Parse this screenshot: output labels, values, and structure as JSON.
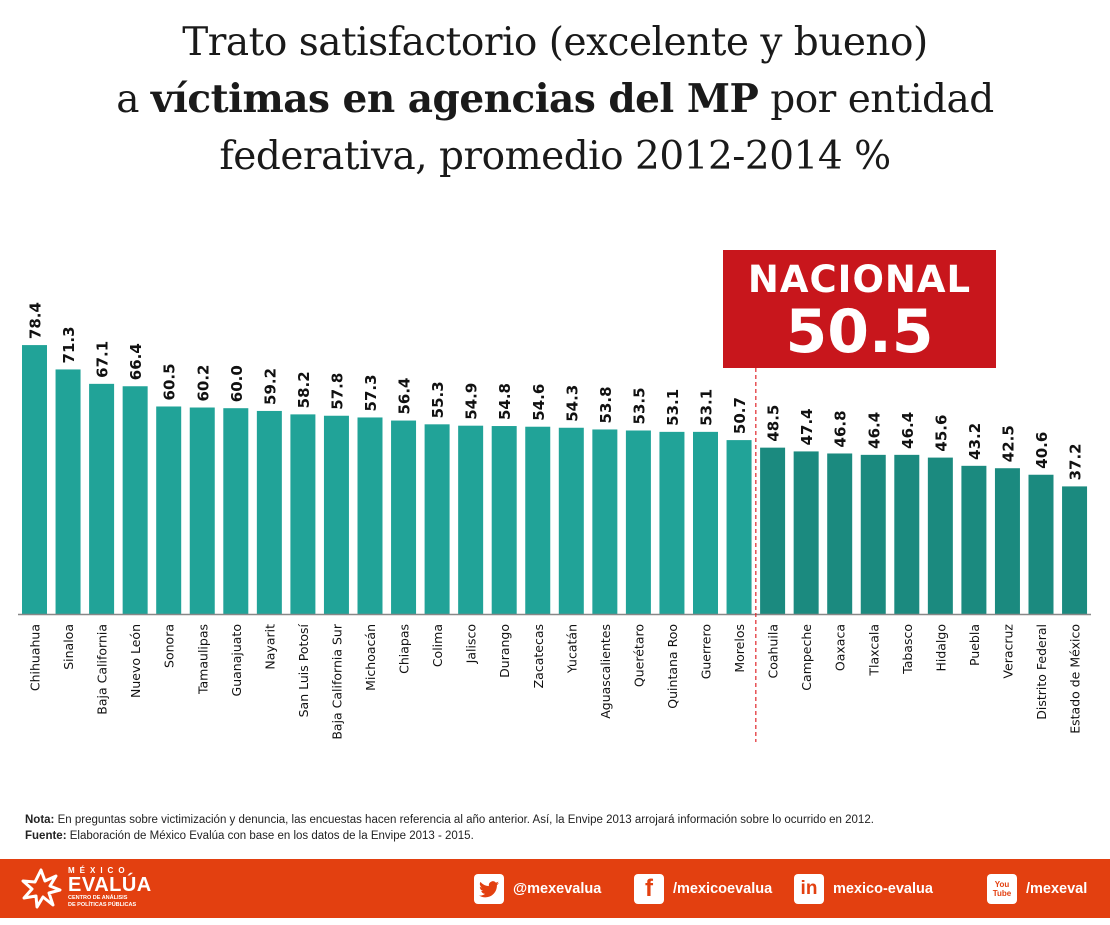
{
  "title": {
    "line1": "Trato satisfactorio (excelente y bueno)",
    "line2_pre": "a ",
    "line2_bold": "víctimas en agencias del MP",
    "line2_post": " por entidad",
    "line3": "federativa, promedio 2012-2014 %"
  },
  "nacional": {
    "label": "NACIONAL",
    "value": "50.5"
  },
  "colors": {
    "above": "#21A398",
    "below": "#1B8A7F",
    "nacional": "#C8161C",
    "footer": "#E34010"
  },
  "chart_data": {
    "type": "bar",
    "title": "Trato satisfactorio (excelente y bueno) a víctimas en agencias del MP por entidad federativa, promedio 2012-2014 %",
    "xlabel": "",
    "ylabel": "",
    "ylim": [
      0,
      80
    ],
    "grid": false,
    "reference_line": {
      "label": "NACIONAL",
      "value": 50.5
    },
    "categories": [
      "Chihuahua",
      "Sinaloa",
      "Baja California",
      "Nuevo León",
      "Sonora",
      "Tamaulipas",
      "Guanajuato",
      "Nayarit",
      "San Luis Potosí",
      "Baja California Sur",
      "Michoacán",
      "Chiapas",
      "Colima",
      "Jalisco",
      "Durango",
      "Zacatecas",
      "Yucatán",
      "Aguascalientes",
      "Querétaro",
      "Quintana Roo",
      "Guerrero",
      "Morelos",
      "Coahuila",
      "Campeche",
      "Oaxaca",
      "Tlaxcala",
      "Tabasco",
      "Hidalgo",
      "Puebla",
      "Veracruz",
      "Distrito Federal",
      "Estado de México"
    ],
    "values": [
      78.4,
      71.3,
      67.1,
      66.4,
      60.5,
      60.2,
      60.0,
      59.2,
      58.2,
      57.8,
      57.3,
      56.4,
      55.3,
      54.9,
      54.8,
      54.6,
      54.3,
      53.8,
      53.5,
      53.1,
      53.1,
      50.7,
      48.5,
      47.4,
      46.8,
      46.4,
      46.4,
      45.6,
      43.2,
      42.5,
      40.6,
      37.2
    ],
    "labels": [
      "78.4",
      "71.3",
      "67.1",
      "66.4",
      "60.5",
      "60.2",
      "60.0",
      "59.2",
      "58.2",
      "57.8",
      "57.3",
      "56.4",
      "55.3",
      "54.9",
      "54.8",
      "54.6",
      "54.3",
      "53.8",
      "53.5",
      "53.1",
      "53.1",
      "50.7",
      "48.5",
      "47.4",
      "46.8",
      "46.4",
      "46.4",
      "45.6",
      "43.2",
      "42.5",
      "40.6",
      "37.2"
    ]
  },
  "notes": {
    "nota_label": "Nota:",
    "nota_text": " En preguntas sobre victimización y denuncia, las encuestas hacen referencia al año anterior. Así, la Envipe 2013 arrojará información sobre lo ocurrido en 2012.",
    "fuente_label": "Fuente:",
    "fuente_text": " Elaboración de México Evalúa con base en los datos de la Envipe 2013 - 2015."
  },
  "footer": {
    "logo": {
      "top": "MÉXICO",
      "main": "EVALÚA",
      "sub1": "CENTRO DE ANÁLISIS",
      "sub2": "DE POLÍTICAS PÚBLICAS"
    },
    "social": [
      {
        "icon": "twitter-icon",
        "glyph": "🐦",
        "handle": "@mexevalua"
      },
      {
        "icon": "facebook-icon",
        "glyph": "f",
        "handle": "/mexicoevalua"
      },
      {
        "icon": "linkedin-icon",
        "glyph": "in",
        "handle": "mexico-evalua"
      },
      {
        "icon": "youtube-icon",
        "glyph": "You Tube",
        "handle": "/mexeval"
      }
    ]
  }
}
